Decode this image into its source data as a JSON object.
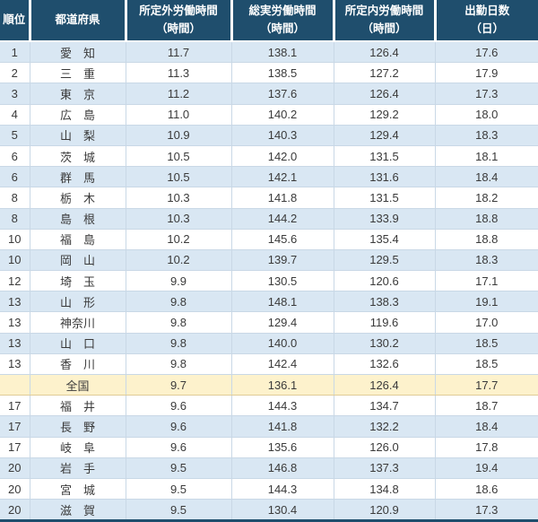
{
  "chart_data": {
    "type": "table",
    "columns": [
      {
        "label": "順位",
        "sub": ""
      },
      {
        "label": "都道府県",
        "sub": ""
      },
      {
        "label": "所定外労働時間",
        "sub": "（時間）"
      },
      {
        "label": "総実労働時間",
        "sub": "（時間）"
      },
      {
        "label": "所定内労働時間",
        "sub": "（時間）"
      },
      {
        "label": "出勤日数",
        "sub": "（日）"
      }
    ],
    "rows": [
      {
        "rank": "1",
        "prefecture": "愛　知",
        "overtime_hours": "11.7",
        "total_hours": "138.1",
        "scheduled_hours": "126.4",
        "attendance_days": "17.6",
        "highlight": false
      },
      {
        "rank": "2",
        "prefecture": "三　重",
        "overtime_hours": "11.3",
        "total_hours": "138.5",
        "scheduled_hours": "127.2",
        "attendance_days": "17.9",
        "highlight": false
      },
      {
        "rank": "3",
        "prefecture": "東　京",
        "overtime_hours": "11.2",
        "total_hours": "137.6",
        "scheduled_hours": "126.4",
        "attendance_days": "17.3",
        "highlight": false
      },
      {
        "rank": "4",
        "prefecture": "広　島",
        "overtime_hours": "11.0",
        "total_hours": "140.2",
        "scheduled_hours": "129.2",
        "attendance_days": "18.0",
        "highlight": false
      },
      {
        "rank": "5",
        "prefecture": "山　梨",
        "overtime_hours": "10.9",
        "total_hours": "140.3",
        "scheduled_hours": "129.4",
        "attendance_days": "18.3",
        "highlight": false
      },
      {
        "rank": "6",
        "prefecture": "茨　城",
        "overtime_hours": "10.5",
        "total_hours": "142.0",
        "scheduled_hours": "131.5",
        "attendance_days": "18.1",
        "highlight": false
      },
      {
        "rank": "6",
        "prefecture": "群　馬",
        "overtime_hours": "10.5",
        "total_hours": "142.1",
        "scheduled_hours": "131.6",
        "attendance_days": "18.4",
        "highlight": false
      },
      {
        "rank": "8",
        "prefecture": "栃　木",
        "overtime_hours": "10.3",
        "total_hours": "141.8",
        "scheduled_hours": "131.5",
        "attendance_days": "18.2",
        "highlight": false
      },
      {
        "rank": "8",
        "prefecture": "島　根",
        "overtime_hours": "10.3",
        "total_hours": "144.2",
        "scheduled_hours": "133.9",
        "attendance_days": "18.8",
        "highlight": false
      },
      {
        "rank": "10",
        "prefecture": "福　島",
        "overtime_hours": "10.2",
        "total_hours": "145.6",
        "scheduled_hours": "135.4",
        "attendance_days": "18.8",
        "highlight": false
      },
      {
        "rank": "10",
        "prefecture": "岡　山",
        "overtime_hours": "10.2",
        "total_hours": "139.7",
        "scheduled_hours": "129.5",
        "attendance_days": "18.3",
        "highlight": false
      },
      {
        "rank": "12",
        "prefecture": "埼　玉",
        "overtime_hours": "9.9",
        "total_hours": "130.5",
        "scheduled_hours": "120.6",
        "attendance_days": "17.1",
        "highlight": false
      },
      {
        "rank": "13",
        "prefecture": "山　形",
        "overtime_hours": "9.8",
        "total_hours": "148.1",
        "scheduled_hours": "138.3",
        "attendance_days": "19.1",
        "highlight": false
      },
      {
        "rank": "13",
        "prefecture": "神奈川",
        "overtime_hours": "9.8",
        "total_hours": "129.4",
        "scheduled_hours": "119.6",
        "attendance_days": "17.0",
        "highlight": false
      },
      {
        "rank": "13",
        "prefecture": "山　口",
        "overtime_hours": "9.8",
        "total_hours": "140.0",
        "scheduled_hours": "130.2",
        "attendance_days": "18.5",
        "highlight": false
      },
      {
        "rank": "13",
        "prefecture": "香　川",
        "overtime_hours": "9.8",
        "total_hours": "142.4",
        "scheduled_hours": "132.6",
        "attendance_days": "18.5",
        "highlight": false
      },
      {
        "rank": "",
        "prefecture": "全国",
        "overtime_hours": "9.7",
        "total_hours": "136.1",
        "scheduled_hours": "126.4",
        "attendance_days": "17.7",
        "highlight": true
      },
      {
        "rank": "17",
        "prefecture": "福　井",
        "overtime_hours": "9.6",
        "total_hours": "144.3",
        "scheduled_hours": "134.7",
        "attendance_days": "18.7",
        "highlight": false
      },
      {
        "rank": "17",
        "prefecture": "長　野",
        "overtime_hours": "9.6",
        "total_hours": "141.8",
        "scheduled_hours": "132.2",
        "attendance_days": "18.4",
        "highlight": false
      },
      {
        "rank": "17",
        "prefecture": "岐　阜",
        "overtime_hours": "9.6",
        "total_hours": "135.6",
        "scheduled_hours": "126.0",
        "attendance_days": "17.8",
        "highlight": false
      },
      {
        "rank": "20",
        "prefecture": "岩　手",
        "overtime_hours": "9.5",
        "total_hours": "146.8",
        "scheduled_hours": "137.3",
        "attendance_days": "19.4",
        "highlight": false
      },
      {
        "rank": "20",
        "prefecture": "宮　城",
        "overtime_hours": "9.5",
        "total_hours": "144.3",
        "scheduled_hours": "134.8",
        "attendance_days": "18.6",
        "highlight": false
      },
      {
        "rank": "20",
        "prefecture": "滋　賀",
        "overtime_hours": "9.5",
        "total_hours": "130.4",
        "scheduled_hours": "120.9",
        "attendance_days": "17.3",
        "highlight": false
      }
    ]
  },
  "colors": {
    "header_bg": "#1f4e6d",
    "header_text": "#ffffff",
    "row_blue": "#d9e7f3",
    "row_white": "#ffffff",
    "row_highlight": "#fdf2cc",
    "body_border": "#c9d8e6",
    "highlight_border": "#e0cc96",
    "body_text": "#3a3a3a",
    "bottom_border": "#1f4e6d"
  }
}
